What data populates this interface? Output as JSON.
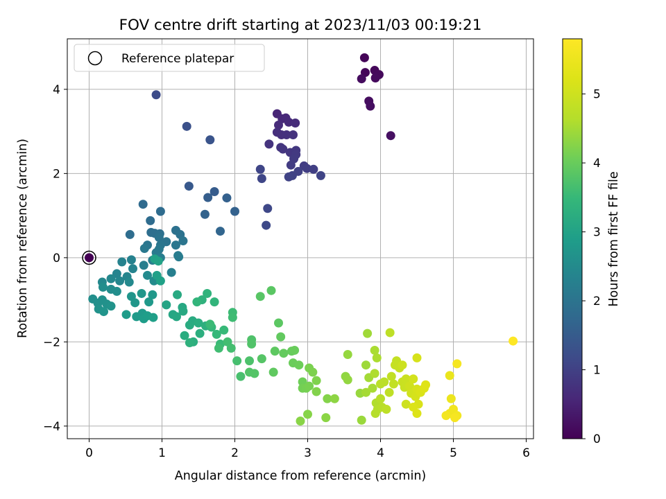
{
  "chart_data": {
    "type": "scatter",
    "title": "FOV centre drift starting at 2023/11/03 00:19:21",
    "xlabel": "Angular distance from reference (arcmin)",
    "ylabel": "Rotation from reference (arcmin)",
    "xlim": [
      -0.3,
      6.1
    ],
    "ylim": [
      -4.3,
      5.2
    ],
    "xticks": [
      0,
      1,
      2,
      3,
      4,
      5,
      6
    ],
    "yticks": [
      -4,
      -2,
      0,
      2,
      4
    ],
    "grid": true,
    "legend": {
      "location": "upper-left",
      "entries": [
        "Reference platepar"
      ]
    },
    "reference_point": {
      "x": 0,
      "y": 0,
      "label": "Reference platepar"
    },
    "colorbar": {
      "label": "Hours from first FF file",
      "colormap": "viridis",
      "range": [
        0,
        5.8
      ],
      "ticks": [
        0,
        1,
        2,
        3,
        4,
        5
      ]
    },
    "points": [
      [
        3.78,
        4.75,
        0.05
      ],
      [
        3.79,
        4.4,
        0.08
      ],
      [
        3.92,
        4.45,
        0.1
      ],
      [
        3.98,
        4.35,
        0.12
      ],
      [
        3.93,
        4.27,
        0.14
      ],
      [
        3.74,
        4.25,
        0.16
      ],
      [
        3.84,
        3.72,
        0.18
      ],
      [
        3.86,
        3.6,
        0.2
      ],
      [
        4.14,
        2.9,
        0.22
      ],
      [
        2.58,
        3.42,
        0.55
      ],
      [
        2.65,
        3.3,
        0.58
      ],
      [
        2.7,
        3.32,
        0.6
      ],
      [
        2.74,
        3.22,
        0.62
      ],
      [
        2.6,
        3.15,
        0.64
      ],
      [
        2.83,
        3.2,
        0.66
      ],
      [
        2.58,
        2.98,
        0.7
      ],
      [
        2.64,
        2.92,
        0.72
      ],
      [
        2.71,
        2.92,
        0.74
      ],
      [
        2.8,
        2.92,
        0.76
      ],
      [
        2.47,
        2.7,
        0.78
      ],
      [
        2.63,
        2.62,
        0.8
      ],
      [
        2.66,
        2.58,
        0.82
      ],
      [
        2.76,
        2.5,
        0.84
      ],
      [
        2.84,
        2.55,
        0.86
      ],
      [
        2.84,
        2.45,
        0.88
      ],
      [
        2.81,
        2.35,
        0.9
      ],
      [
        2.77,
        2.2,
        0.92
      ],
      [
        2.95,
        2.18,
        0.94
      ],
      [
        2.99,
        2.12,
        0.96
      ],
      [
        3.08,
        2.1,
        0.98
      ],
      [
        2.87,
        2.05,
        1.0
      ],
      [
        2.79,
        1.95,
        1.02
      ],
      [
        2.74,
        1.92,
        1.04
      ],
      [
        3.18,
        1.95,
        1.06
      ],
      [
        2.35,
        2.1,
        1.08
      ],
      [
        2.37,
        1.88,
        1.1
      ],
      [
        2.45,
        1.17,
        1.12
      ],
      [
        2.43,
        0.77,
        1.14
      ],
      [
        0.92,
        3.87,
        1.2
      ],
      [
        1.34,
        3.12,
        1.3
      ],
      [
        1.66,
        2.8,
        1.35
      ],
      [
        1.37,
        1.7,
        1.45
      ],
      [
        1.72,
        1.57,
        1.5
      ],
      [
        1.63,
        1.43,
        1.55
      ],
      [
        1.89,
        1.42,
        1.6
      ],
      [
        2.0,
        1.1,
        1.62
      ],
      [
        1.59,
        1.03,
        1.65
      ],
      [
        1.8,
        0.63,
        1.7
      ],
      [
        0.74,
        1.27,
        1.8
      ],
      [
        0.98,
        1.1,
        1.82
      ],
      [
        0.84,
        0.88,
        1.84
      ],
      [
        0.56,
        0.55,
        1.86
      ],
      [
        0.85,
        0.6,
        1.88
      ],
      [
        0.9,
        0.58,
        1.9
      ],
      [
        0.97,
        0.57,
        1.92
      ],
      [
        1.19,
        0.65,
        1.94
      ],
      [
        1.25,
        0.55,
        1.96
      ],
      [
        0.96,
        0.48,
        1.98
      ],
      [
        1.06,
        0.38,
        2.0
      ],
      [
        1.29,
        0.4,
        2.02
      ],
      [
        0.8,
        0.3,
        2.04
      ],
      [
        0.98,
        0.3,
        2.06
      ],
      [
        1.19,
        0.3,
        2.08
      ],
      [
        0.76,
        0.22,
        2.1
      ],
      [
        0.96,
        0.2,
        2.12
      ],
      [
        0.92,
        0.12,
        2.14
      ],
      [
        1.22,
        0.05,
        2.16
      ],
      [
        1.23,
        0.02,
        2.18
      ],
      [
        0.98,
        0.0,
        2.2
      ],
      [
        0.87,
        -0.06,
        2.22
      ],
      [
        0.75,
        -0.18,
        2.24
      ],
      [
        1.13,
        -0.35,
        2.26
      ],
      [
        0.58,
        -0.05,
        2.3
      ],
      [
        0.45,
        -0.1,
        2.32
      ],
      [
        0.6,
        -0.26,
        2.34
      ],
      [
        0.38,
        -0.38,
        2.36
      ],
      [
        0.52,
        -0.45,
        2.38
      ],
      [
        0.42,
        -0.55,
        2.4
      ],
      [
        0.3,
        -0.5,
        2.42
      ],
      [
        0.18,
        -0.58,
        2.44
      ],
      [
        0.55,
        -0.58,
        2.46
      ],
      [
        0.8,
        -0.42,
        2.48
      ],
      [
        0.89,
        -0.55,
        2.5
      ],
      [
        0.3,
        -0.75,
        2.52
      ],
      [
        0.19,
        -0.7,
        2.54
      ],
      [
        0.38,
        -0.8,
        2.56
      ],
      [
        0.05,
        -0.98,
        2.58
      ],
      [
        0.12,
        -1.08,
        2.6
      ],
      [
        0.18,
        -1.0,
        2.62
      ],
      [
        0.24,
        -1.1,
        2.64
      ],
      [
        0.13,
        -1.22,
        2.66
      ],
      [
        0.3,
        -1.15,
        2.68
      ],
      [
        0.2,
        -1.28,
        2.7
      ],
      [
        0.58,
        -0.92,
        2.72
      ],
      [
        0.63,
        -1.07,
        2.74
      ],
      [
        0.72,
        -0.85,
        2.76
      ],
      [
        0.87,
        -0.88,
        2.78
      ],
      [
        0.82,
        -1.05,
        2.8
      ],
      [
        0.73,
        -1.32,
        2.82
      ],
      [
        0.65,
        -1.4,
        2.84
      ],
      [
        0.51,
        -1.35,
        2.86
      ],
      [
        0.75,
        -1.45,
        2.88
      ],
      [
        0.8,
        -1.38,
        2.9
      ],
      [
        0.88,
        -1.42,
        2.92
      ],
      [
        0.93,
        -0.42,
        2.94
      ],
      [
        0.98,
        -0.55,
        2.96
      ],
      [
        0.9,
        -0.03,
        2.98
      ],
      [
        0.95,
        -0.08,
        3.0
      ],
      [
        1.06,
        -1.12,
        3.05
      ],
      [
        1.15,
        -1.35,
        3.08
      ],
      [
        1.2,
        -1.4,
        3.1
      ],
      [
        1.28,
        -1.18,
        3.12
      ],
      [
        1.29,
        -1.27,
        3.14
      ],
      [
        1.21,
        -0.88,
        3.16
      ],
      [
        1.42,
        -1.5,
        3.18
      ],
      [
        1.38,
        -1.6,
        3.2
      ],
      [
        1.31,
        -1.85,
        3.22
      ],
      [
        1.5,
        -1.55,
        3.24
      ],
      [
        1.52,
        -1.8,
        3.26
      ],
      [
        1.43,
        -2.0,
        3.28
      ],
      [
        1.6,
        -1.62,
        3.3
      ],
      [
        1.38,
        -2.02,
        3.32
      ],
      [
        1.55,
        -1.0,
        3.35
      ],
      [
        1.62,
        -0.85,
        3.38
      ],
      [
        1.72,
        -1.05,
        3.4
      ],
      [
        1.48,
        -1.05,
        3.42
      ],
      [
        1.68,
        -1.65,
        3.45
      ],
      [
        1.75,
        -1.82,
        3.48
      ],
      [
        1.85,
        -1.72,
        3.5
      ],
      [
        1.8,
        -2.05,
        3.52
      ],
      [
        1.66,
        -1.58,
        3.54
      ],
      [
        1.97,
        -1.3,
        3.56
      ],
      [
        1.97,
        -1.42,
        3.58
      ],
      [
        1.78,
        -2.15,
        3.6
      ],
      [
        1.9,
        -2.0,
        3.62
      ],
      [
        1.95,
        -2.15,
        3.64
      ],
      [
        2.03,
        -2.45,
        3.66
      ],
      [
        2.08,
        -2.82,
        3.68
      ],
      [
        2.2,
        -2.45,
        3.72
      ],
      [
        2.23,
        -1.95,
        3.74
      ],
      [
        2.23,
        -2.05,
        3.76
      ],
      [
        2.2,
        -2.72,
        3.78
      ],
      [
        2.27,
        -2.75,
        3.8
      ],
      [
        2.37,
        -2.4,
        3.82
      ],
      [
        2.35,
        -0.92,
        3.84
      ],
      [
        2.5,
        -0.78,
        3.86
      ],
      [
        2.6,
        -1.55,
        3.88
      ],
      [
        2.55,
        -2.22,
        3.9
      ],
      [
        2.53,
        -2.72,
        3.92
      ],
      [
        2.63,
        -1.88,
        3.94
      ],
      [
        2.67,
        -2.27,
        3.96
      ],
      [
        2.78,
        -2.22,
        3.98
      ],
      [
        2.82,
        -2.2,
        4.0
      ],
      [
        2.8,
        -2.5,
        4.02
      ],
      [
        2.88,
        -2.55,
        4.04
      ],
      [
        2.93,
        -2.95,
        4.06
      ],
      [
        2.93,
        -3.1,
        4.1
      ],
      [
        2.98,
        -3.1,
        4.12
      ],
      [
        3.02,
        -3.05,
        4.14
      ],
      [
        3.02,
        -2.62,
        4.16
      ],
      [
        3.07,
        -2.72,
        4.18
      ],
      [
        3.12,
        -2.92,
        4.2
      ],
      [
        3.12,
        -3.18,
        4.22
      ],
      [
        3.27,
        -3.35,
        4.24
      ],
      [
        3.0,
        -3.72,
        4.26
      ],
      [
        2.9,
        -3.88,
        4.28
      ],
      [
        3.25,
        -3.8,
        4.3
      ],
      [
        3.37,
        -3.35,
        4.32
      ],
      [
        3.52,
        -2.82,
        4.34
      ],
      [
        3.55,
        -2.9,
        4.36
      ],
      [
        3.55,
        -2.3,
        4.38
      ],
      [
        3.72,
        -3.22,
        4.4
      ],
      [
        3.74,
        -3.86,
        4.42
      ],
      [
        3.8,
        -2.55,
        4.45
      ],
      [
        3.82,
        -1.8,
        4.47
      ],
      [
        3.84,
        -2.85,
        4.49
      ],
      [
        3.8,
        -3.2,
        4.51
      ],
      [
        3.89,
        -3.1,
        4.53
      ],
      [
        3.92,
        -2.2,
        4.55
      ],
      [
        3.95,
        -2.38,
        4.57
      ],
      [
        3.92,
        -2.75,
        4.59
      ],
      [
        3.94,
        -3.45,
        4.61
      ],
      [
        3.96,
        -3.6,
        4.63
      ],
      [
        3.93,
        -3.7,
        4.65
      ],
      [
        4.0,
        -3.35,
        4.67
      ],
      [
        4.02,
        -3.55,
        4.69
      ],
      [
        4.0,
        -3.0,
        4.71
      ],
      [
        4.05,
        -2.95,
        4.73
      ],
      [
        4.08,
        -3.6,
        4.75
      ],
      [
        4.13,
        -1.78,
        4.77
      ],
      [
        4.12,
        -3.2,
        4.79
      ],
      [
        4.15,
        -2.82,
        4.81
      ],
      [
        4.18,
        -3.0,
        4.83
      ],
      [
        4.22,
        -2.45,
        4.85
      ],
      [
        4.2,
        -2.55,
        4.87
      ],
      [
        4.26,
        -2.62,
        4.89
      ],
      [
        4.3,
        -2.95,
        4.91
      ],
      [
        4.33,
        -3.08,
        4.93
      ],
      [
        4.35,
        -2.88,
        4.95
      ],
      [
        4.3,
        -2.55,
        4.97
      ],
      [
        4.35,
        -3.48,
        4.99
      ],
      [
        4.4,
        -3.05,
        5.02
      ],
      [
        4.42,
        -3.22,
        5.05
      ],
      [
        4.45,
        -2.88,
        5.08
      ],
      [
        4.48,
        -3.3,
        5.1
      ],
      [
        4.5,
        -2.38,
        5.12
      ],
      [
        4.5,
        -3.12,
        5.14
      ],
      [
        4.52,
        -3.48,
        5.16
      ],
      [
        4.55,
        -3.2,
        5.18
      ],
      [
        4.45,
        -3.55,
        5.2
      ],
      [
        4.5,
        -3.7,
        5.22
      ],
      [
        4.6,
        -3.1,
        5.24
      ],
      [
        4.62,
        -3.02,
        5.26
      ],
      [
        4.95,
        -2.8,
        5.45
      ],
      [
        4.97,
        -3.35,
        5.5
      ],
      [
        4.95,
        -3.7,
        5.55
      ],
      [
        5.0,
        -3.6,
        5.58
      ],
      [
        5.05,
        -3.75,
        5.6
      ],
      [
        4.9,
        -3.75,
        5.62
      ],
      [
        5.05,
        -2.52,
        5.65
      ],
      [
        5.02,
        -3.8,
        5.68
      ],
      [
        5.82,
        -1.98,
        5.8
      ]
    ]
  }
}
